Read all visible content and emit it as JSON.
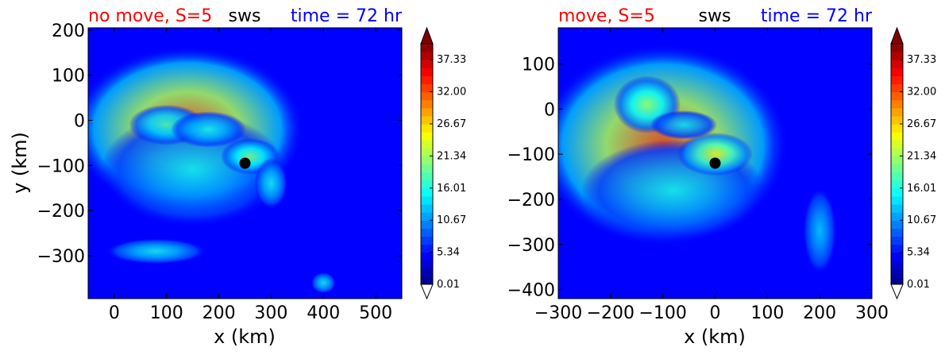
{
  "colors": {
    "title_left": "#ff0000",
    "title_center": "#000000",
    "title_right": "#0000ff",
    "marker": "#000000"
  },
  "chart_data": [
    {
      "type": "heatmap",
      "title_left": "no move, S=5",
      "title_center": "sws",
      "title_right": "time = 72 hr",
      "xlabel": "x (km)",
      "ylabel": "y (km)",
      "xlim": [
        -50,
        550
      ],
      "ylim": [
        -395,
        205
      ],
      "xticks": [
        0,
        100,
        200,
        300,
        400,
        500
      ],
      "yticks": [
        200,
        100,
        0,
        -100,
        -200,
        -300
      ],
      "xtick_labels": [
        "0",
        "100",
        "200",
        "300",
        "400",
        "500"
      ],
      "ytick_labels": [
        "200",
        "100",
        "0",
        "−100",
        "−200",
        "−300"
      ],
      "center_marker": {
        "x": 250,
        "y": -95
      },
      "colorbar": {
        "min": 0.01,
        "max": 40.0,
        "extend": "both",
        "colormap": "jet",
        "tick_values": [
          0.01,
          5.34,
          10.67,
          16.01,
          21.34,
          26.67,
          32.0,
          37.33
        ],
        "tick_labels": [
          "0.01",
          "5.34",
          "10.67",
          "16.01",
          "21.34",
          "26.67",
          "32.00",
          "37.33"
        ]
      },
      "field_features": [
        {
          "x": 140,
          "y": -20,
          "sx": 140,
          "sy": 115,
          "value": 12
        },
        {
          "x": 150,
          "y": -110,
          "sx": 110,
          "sy": 80,
          "value": 4
        },
        {
          "x": 100,
          "y": -10,
          "sx": 45,
          "sy": 28,
          "value": 6
        },
        {
          "x": 180,
          "y": -20,
          "sx": 45,
          "sy": 25,
          "value": 5
        },
        {
          "x": 260,
          "y": -80,
          "sx": 35,
          "sy": 25,
          "value": 7
        },
        {
          "x": 300,
          "y": -140,
          "sx": 20,
          "sy": 35,
          "value": 5
        },
        {
          "x": 80,
          "y": -290,
          "sx": 60,
          "sy": 18,
          "value": 5
        },
        {
          "x": 400,
          "y": -360,
          "sx": 15,
          "sy": 15,
          "value": 5
        }
      ],
      "background_value": 5
    },
    {
      "type": "heatmap",
      "title_left": "move, S=5",
      "title_center": "sws",
      "title_right": "time = 72 hr",
      "xlabel": "x (km)",
      "ylabel": "",
      "xlim": [
        -300,
        300
      ],
      "ylim": [
        -420,
        180
      ],
      "xticks": [
        -300,
        -200,
        -100,
        0,
        100,
        200,
        300
      ],
      "yticks": [
        100,
        0,
        -100,
        -200,
        -300,
        -400
      ],
      "xtick_labels": [
        "−300",
        "−200",
        "−100",
        "0",
        "100",
        "200",
        "300"
      ],
      "ytick_labels": [
        "100",
        "0",
        "−100",
        "−200",
        "−300",
        "−400"
      ],
      "center_marker": {
        "x": 0,
        "y": -120
      },
      "colorbar": {
        "min": 0.01,
        "max": 40.0,
        "extend": "both",
        "colormap": "jet",
        "tick_values": [
          0.01,
          5.34,
          10.67,
          16.01,
          21.34,
          26.67,
          32.0,
          37.33
        ],
        "tick_labels": [
          "0.01",
          "5.34",
          "10.67",
          "16.01",
          "21.34",
          "26.67",
          "32.00",
          "37.33"
        ]
      },
      "field_features": [
        {
          "x": -100,
          "y": -80,
          "sx": 150,
          "sy": 140,
          "value": 12
        },
        {
          "x": -80,
          "y": -180,
          "sx": 110,
          "sy": 70,
          "value": 4
        },
        {
          "x": -130,
          "y": 10,
          "sx": 40,
          "sy": 40,
          "value": 7
        },
        {
          "x": -60,
          "y": -35,
          "sx": 40,
          "sy": 20,
          "value": 4
        },
        {
          "x": 0,
          "y": -100,
          "sx": 45,
          "sy": 30,
          "value": 9
        },
        {
          "x": 200,
          "y": -270,
          "sx": 20,
          "sy": 60,
          "value": 4
        }
      ],
      "background_value": 5
    }
  ]
}
